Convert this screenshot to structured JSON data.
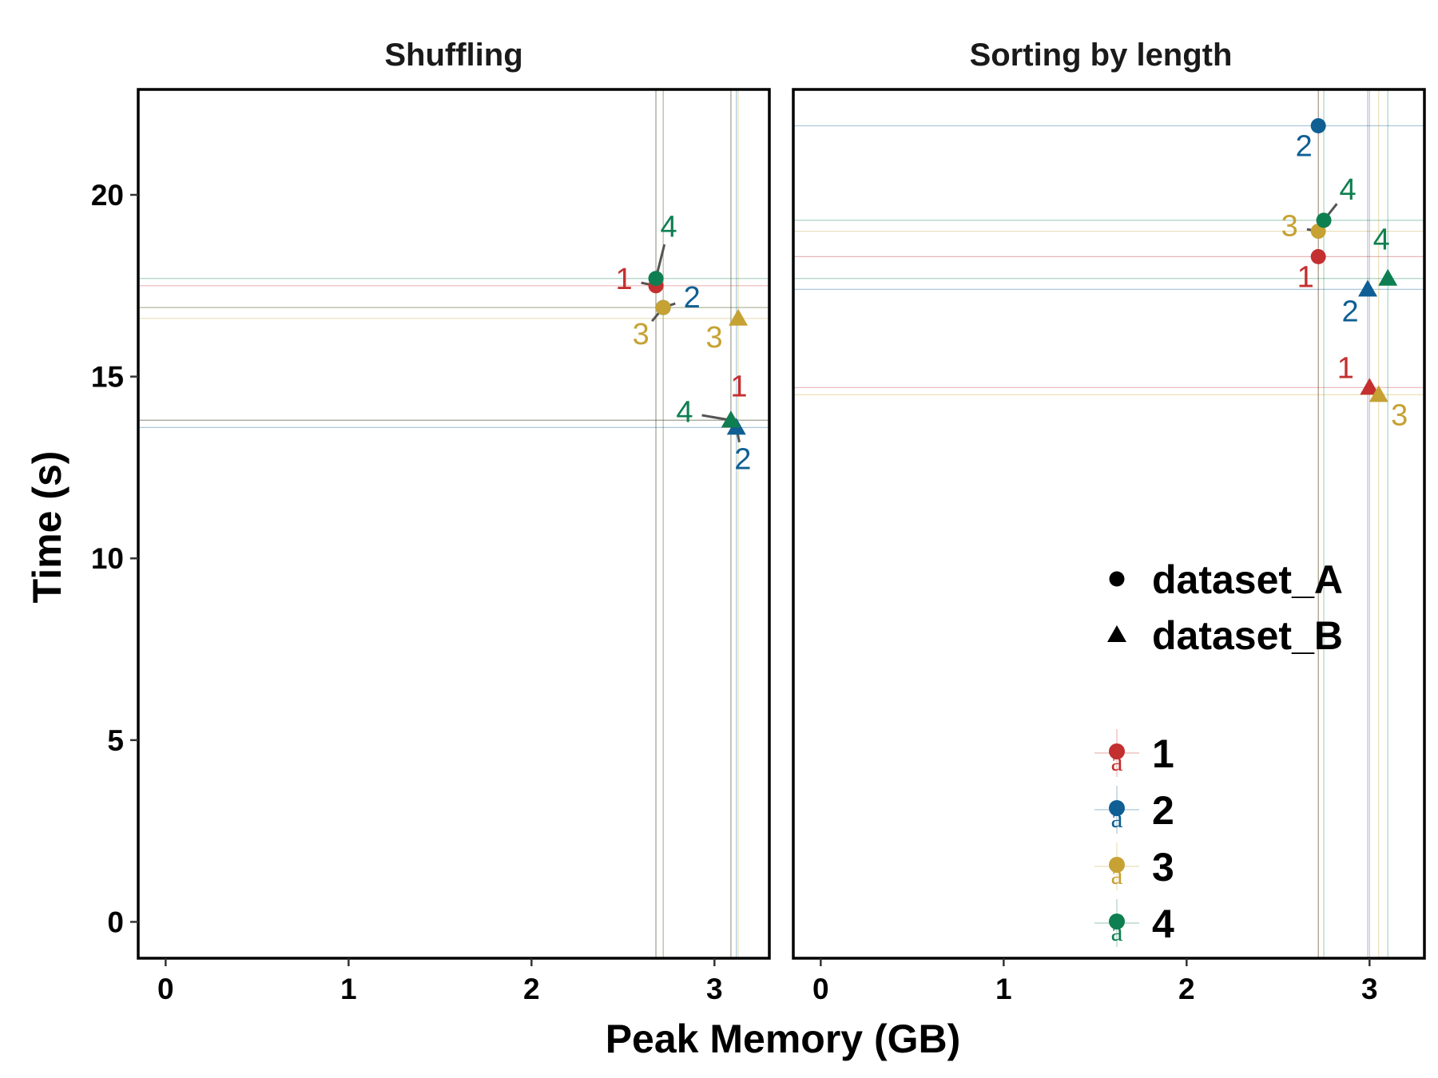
{
  "colors": {
    "1": "#c42f2f",
    "2": "#0f5f94",
    "3": "#c6a234",
    "4": "#0e7f50"
  },
  "chart_data": {
    "type": "scatter",
    "xlabel": "Peak Memory (GB)",
    "ylabel": "Time (s)",
    "xlim": [
      -0.15,
      3.3
    ],
    "ylim": [
      -1.0,
      22.9
    ],
    "xticks": [
      0,
      1,
      2,
      3
    ],
    "yticks": [
      0,
      5,
      10,
      15,
      20
    ],
    "grid": false,
    "legend": {
      "placement": "bottom-right",
      "shapes": [
        {
          "label": "dataset_A",
          "shape": "circle"
        },
        {
          "label": "dataset_B",
          "shape": "triangle"
        }
      ],
      "groups": [
        "1",
        "2",
        "3",
        "4"
      ],
      "key_glyph": "a"
    },
    "panels": [
      {
        "title": "Shuffling",
        "points": [
          {
            "group": "1",
            "dataset": "dataset_A",
            "x": 2.68,
            "y": 17.5,
            "label": "1"
          },
          {
            "group": "2",
            "dataset": "dataset_A",
            "x": 2.72,
            "y": 16.9,
            "label": "2"
          },
          {
            "group": "3",
            "dataset": "dataset_A",
            "x": 2.72,
            "y": 16.9,
            "label": "3"
          },
          {
            "group": "4",
            "dataset": "dataset_A",
            "x": 2.68,
            "y": 17.7,
            "label": "4"
          },
          {
            "group": "1",
            "dataset": "dataset_B",
            "x": 3.09,
            "y": 13.8,
            "label": "1"
          },
          {
            "group": "2",
            "dataset": "dataset_B",
            "x": 3.12,
            "y": 13.6,
            "label": "2"
          },
          {
            "group": "3",
            "dataset": "dataset_B",
            "x": 3.13,
            "y": 16.6,
            "label": "3"
          },
          {
            "group": "4",
            "dataset": "dataset_B",
            "x": 3.09,
            "y": 13.8,
            "label": "4"
          }
        ]
      },
      {
        "title": "Sorting by length",
        "points": [
          {
            "group": "1",
            "dataset": "dataset_A",
            "x": 2.72,
            "y": 18.3,
            "label": "1"
          },
          {
            "group": "2",
            "dataset": "dataset_A",
            "x": 2.72,
            "y": 21.9,
            "label": "2"
          },
          {
            "group": "3",
            "dataset": "dataset_A",
            "x": 2.72,
            "y": 19.0,
            "label": "3"
          },
          {
            "group": "4",
            "dataset": "dataset_A",
            "x": 2.75,
            "y": 19.3,
            "label": "4"
          },
          {
            "group": "1",
            "dataset": "dataset_B",
            "x": 3.0,
            "y": 14.7,
            "label": "1"
          },
          {
            "group": "2",
            "dataset": "dataset_B",
            "x": 2.99,
            "y": 17.4,
            "label": "2"
          },
          {
            "group": "3",
            "dataset": "dataset_B",
            "x": 3.05,
            "y": 14.5,
            "label": "3"
          },
          {
            "group": "4",
            "dataset": "dataset_B",
            "x": 3.1,
            "y": 17.7,
            "label": "4"
          }
        ]
      }
    ]
  }
}
